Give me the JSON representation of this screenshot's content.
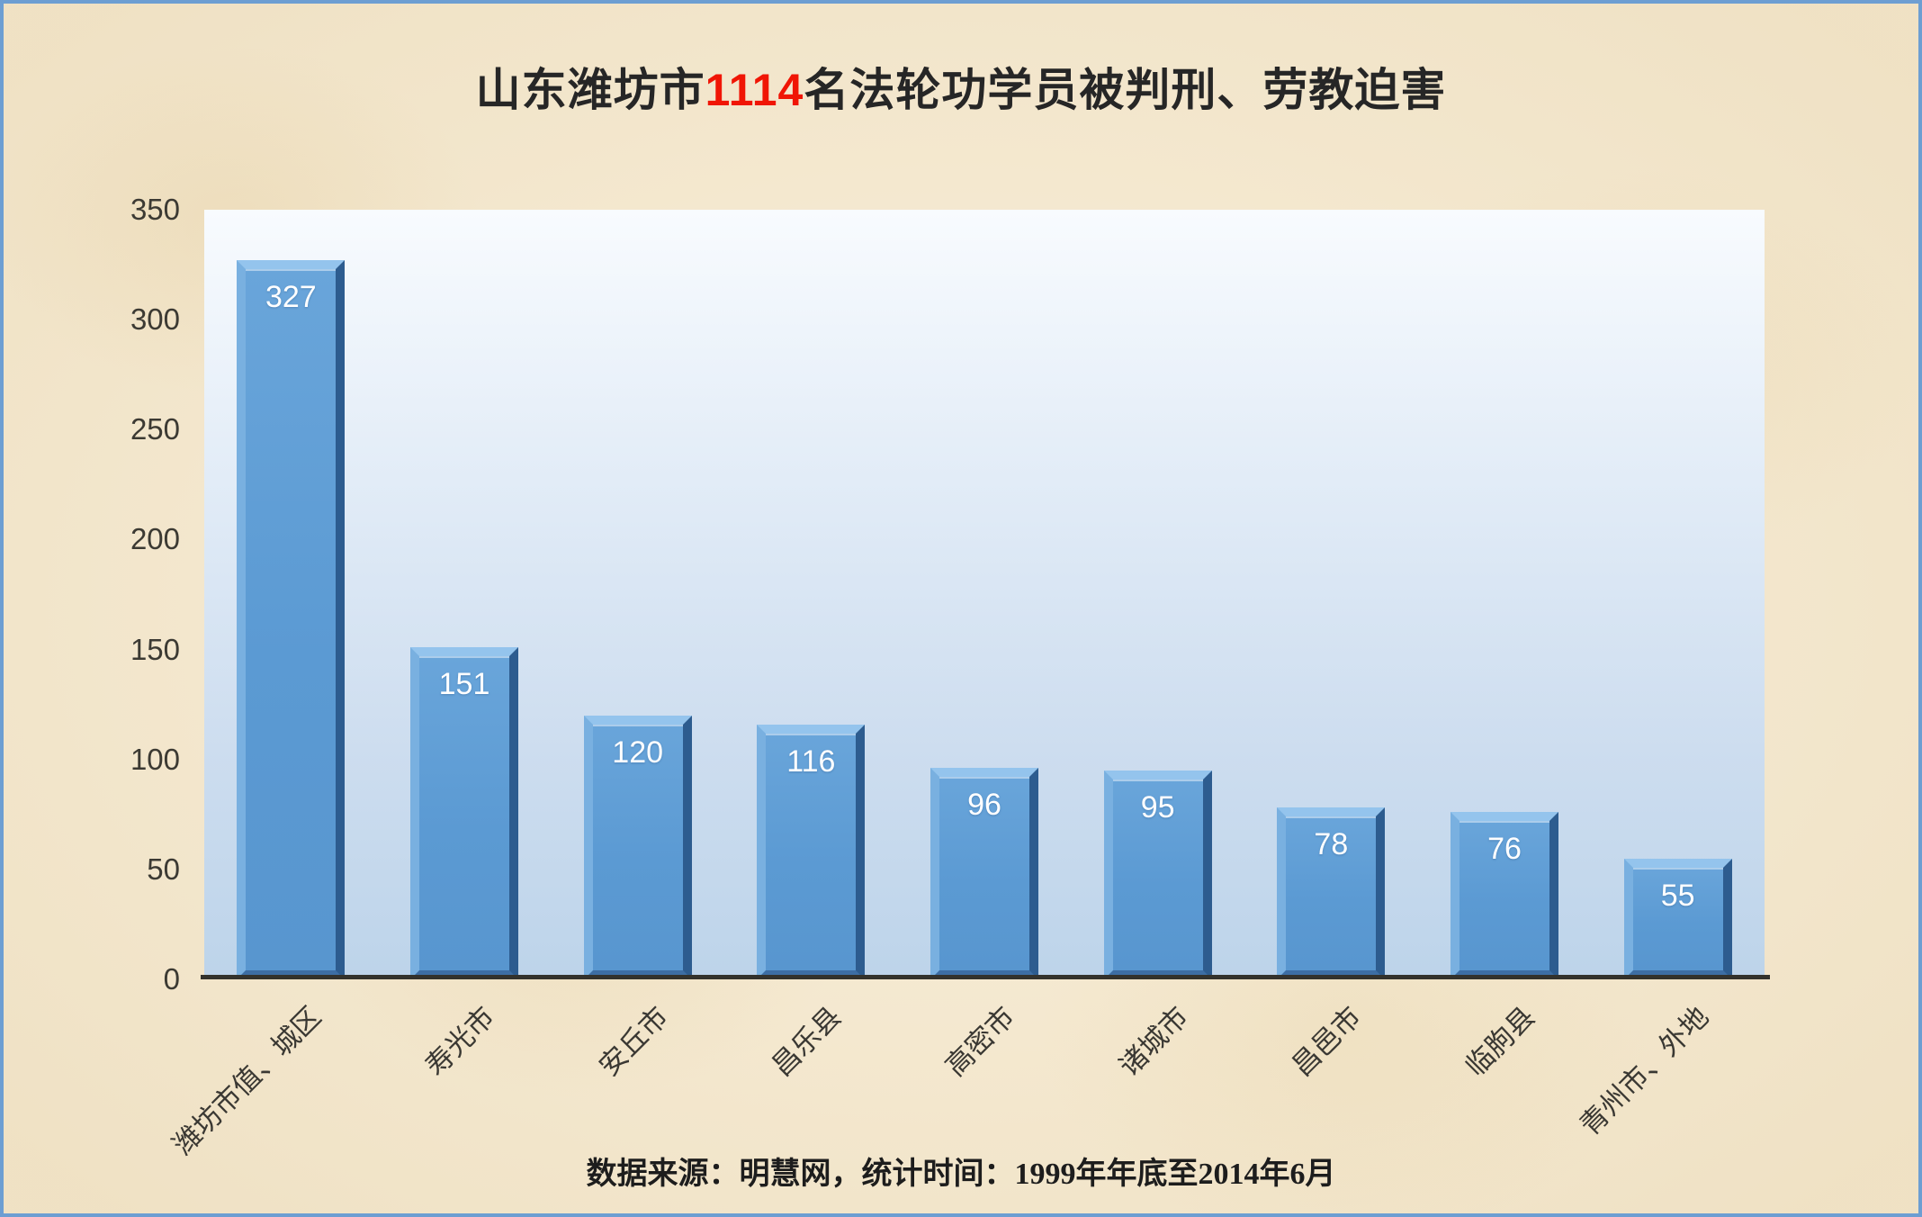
{
  "title": {
    "prefix": "山东潍坊市",
    "highlight": "1114",
    "suffix": "名法轮功学员被判刑、劳教迫害"
  },
  "footer": {
    "prefix": "数据来源：明慧网，统计时间：",
    "period": "1999年年底至2014年6月"
  },
  "chart_data": {
    "type": "bar",
    "title": "山东潍坊市1114名法轮功学员被判刑、劳教迫害",
    "categories": [
      "潍坊市值、城区",
      "寿光市",
      "安丘市",
      "昌乐县",
      "高密市",
      "诸城市",
      "昌邑市",
      "临朐县",
      "青州市、外地"
    ],
    "values": [
      327,
      151,
      120,
      116,
      96,
      95,
      78,
      76,
      55
    ],
    "total": 1114,
    "xlabel": "",
    "ylabel": "",
    "ylim": [
      0,
      350
    ],
    "yticks": [
      0,
      50,
      100,
      150,
      200,
      250,
      300,
      350
    ],
    "grid": false,
    "legend": "none",
    "value_labels": "inside-top",
    "bar_color": "#5B9BD5",
    "bar_bevel_light": "#94C4ED",
    "bar_bevel_dark": "#2D5C8F",
    "value_label_color": "#FFFFFF",
    "plot_bg_top": "#F8FBFE",
    "plot_bg_bottom": "#BDD4EA",
    "axis_line_color": "#33322C",
    "tick_label_color": "#3C3A33"
  },
  "colors": {
    "background": "#F6EAD1",
    "frame_border": "#6D9ED2",
    "title_text": "#262626",
    "title_highlight": "#F01505"
  }
}
